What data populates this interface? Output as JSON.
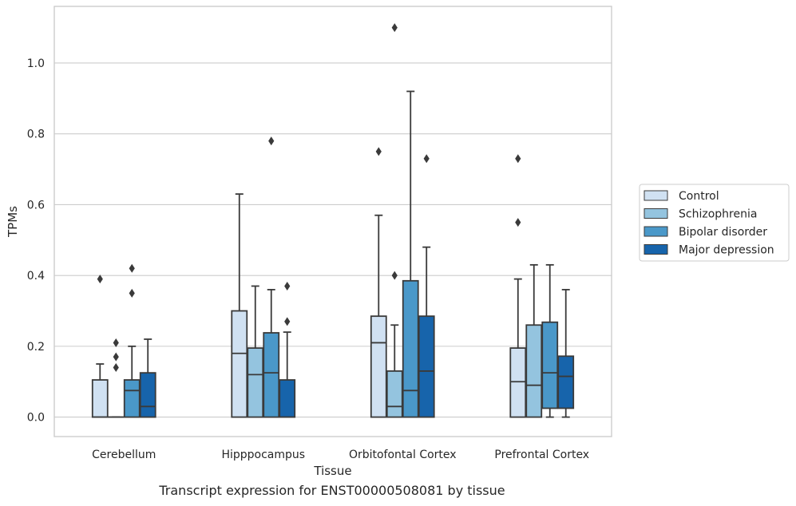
{
  "caption": "Transcript expression for ENST00000508081 by tissue",
  "chart_data": {
    "type": "box",
    "xlabel": "Tissue",
    "ylabel": "TPMs",
    "ylim": [
      -0.055,
      1.16
    ],
    "yticks": [
      0.0,
      0.2,
      0.4,
      0.6,
      0.8,
      1.0
    ],
    "ytick_labels": [
      "0.0",
      "0.2",
      "0.4",
      "0.6",
      "0.8",
      "1.0"
    ],
    "grid": "horizontal",
    "legend_position": "right",
    "categories": [
      "Cerebellum",
      "Hipppocampus",
      "Orbitofontal Cortex",
      "Prefrontal Cortex"
    ],
    "series": [
      {
        "name": "Control",
        "color": "#d0e1f2",
        "boxes": [
          {
            "whislo": 0.0,
            "q1": 0.0,
            "med": 0.0,
            "q3": 0.105,
            "whishi": 0.15,
            "fliers": [
              0.39
            ]
          },
          {
            "whislo": 0.0,
            "q1": 0.0,
            "med": 0.18,
            "q3": 0.3,
            "whishi": 0.63,
            "fliers": []
          },
          {
            "whislo": 0.0,
            "q1": 0.0,
            "med": 0.21,
            "q3": 0.285,
            "whishi": 0.57,
            "fliers": [
              0.75
            ]
          },
          {
            "whislo": 0.0,
            "q1": 0.0,
            "med": 0.1,
            "q3": 0.195,
            "whishi": 0.39,
            "fliers": [
              0.55,
              0.73
            ]
          }
        ]
      },
      {
        "name": "Schizophrenia",
        "color": "#94c4df",
        "boxes": [
          {
            "whislo": 0.0,
            "q1": 0.0,
            "med": 0.0,
            "q3": 0.0,
            "whishi": 0.0,
            "fliers": [
              0.14,
              0.17,
              0.21
            ]
          },
          {
            "whislo": 0.0,
            "q1": 0.0,
            "med": 0.12,
            "q3": 0.195,
            "whishi": 0.37,
            "fliers": []
          },
          {
            "whislo": 0.0,
            "q1": 0.0,
            "med": 0.03,
            "q3": 0.13,
            "whishi": 0.26,
            "fliers": [
              0.4,
              1.1
            ]
          },
          {
            "whislo": 0.0,
            "q1": 0.0,
            "med": 0.09,
            "q3": 0.26,
            "whishi": 0.43,
            "fliers": []
          }
        ]
      },
      {
        "name": "Bipolar disorder",
        "color": "#4a98c9",
        "boxes": [
          {
            "whislo": 0.0,
            "q1": 0.0,
            "med": 0.075,
            "q3": 0.105,
            "whishi": 0.2,
            "fliers": [
              0.35,
              0.42
            ]
          },
          {
            "whislo": 0.0,
            "q1": 0.0,
            "med": 0.125,
            "q3": 0.238,
            "whishi": 0.36,
            "fliers": [
              0.78
            ]
          },
          {
            "whislo": 0.0,
            "q1": 0.0,
            "med": 0.075,
            "q3": 0.385,
            "whishi": 0.92,
            "fliers": []
          },
          {
            "whislo": 0.0,
            "q1": 0.025,
            "med": 0.125,
            "q3": 0.268,
            "whishi": 0.43,
            "fliers": []
          }
        ]
      },
      {
        "name": "Major depression",
        "color": "#1764ab",
        "boxes": [
          {
            "whislo": 0.0,
            "q1": 0.0,
            "med": 0.03,
            "q3": 0.125,
            "whishi": 0.22,
            "fliers": []
          },
          {
            "whislo": 0.0,
            "q1": 0.0,
            "med": 0.0,
            "q3": 0.105,
            "whishi": 0.24,
            "fliers": [
              0.27,
              0.37
            ]
          },
          {
            "whislo": 0.0,
            "q1": 0.0,
            "med": 0.13,
            "q3": 0.285,
            "whishi": 0.48,
            "fliers": [
              0.73
            ]
          },
          {
            "whislo": 0.0,
            "q1": 0.025,
            "med": 0.115,
            "q3": 0.172,
            "whishi": 0.36,
            "fliers": []
          }
        ]
      }
    ]
  }
}
